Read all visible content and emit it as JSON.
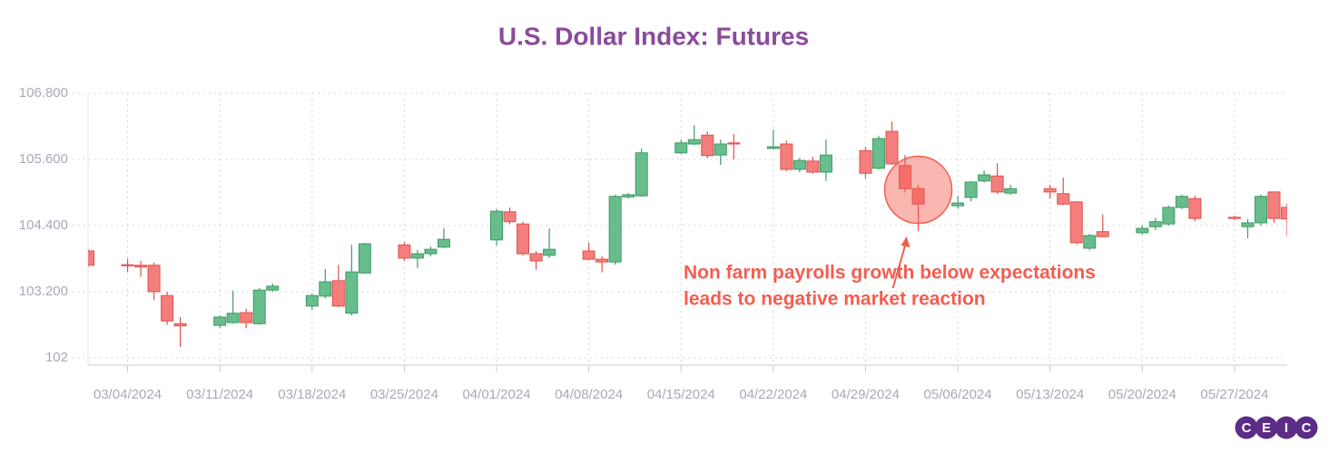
{
  "chart_data": {
    "type": "candlestick",
    "title": "U.S. Dollar Index: Futures",
    "x": [
      "2024-03-01",
      "2024-03-04",
      "2024-03-05",
      "2024-03-06",
      "2024-03-07",
      "2024-03-08",
      "2024-03-11",
      "2024-03-12",
      "2024-03-13",
      "2024-03-14",
      "2024-03-15",
      "2024-03-18",
      "2024-03-19",
      "2024-03-20",
      "2024-03-21",
      "2024-03-22",
      "2024-03-25",
      "2024-03-26",
      "2024-03-27",
      "2024-03-28",
      "2024-04-01",
      "2024-04-02",
      "2024-04-03",
      "2024-04-04",
      "2024-04-05",
      "2024-04-08",
      "2024-04-09",
      "2024-04-10",
      "2024-04-11",
      "2024-04-12",
      "2024-04-15",
      "2024-04-16",
      "2024-04-17",
      "2024-04-18",
      "2024-04-19",
      "2024-04-22",
      "2024-04-23",
      "2024-04-24",
      "2024-04-25",
      "2024-04-26",
      "2024-04-29",
      "2024-04-30",
      "2024-05-01",
      "2024-05-02",
      "2024-05-03",
      "2024-05-06",
      "2024-05-07",
      "2024-05-08",
      "2024-05-09",
      "2024-05-10",
      "2024-05-13",
      "2024-05-14",
      "2024-05-15",
      "2024-05-16",
      "2024-05-17",
      "2024-05-20",
      "2024-05-21",
      "2024-05-22",
      "2024-05-23",
      "2024-05-24",
      "2024-05-27",
      "2024-05-28",
      "2024-05-29",
      "2024-05-30",
      "2024-05-31"
    ],
    "open": [
      103.94,
      103.69,
      103.68,
      103.68,
      103.13,
      102.62,
      102.59,
      102.64,
      102.82,
      102.62,
      103.23,
      102.94,
      103.12,
      103.4,
      102.81,
      103.54,
      104.05,
      103.81,
      103.89,
      104.01,
      104.14,
      104.65,
      104.43,
      103.89,
      103.86,
      103.94,
      103.79,
      103.74,
      104.92,
      104.94,
      105.72,
      105.88,
      106.04,
      105.68,
      105.9,
      105.8,
      105.88,
      105.42,
      105.57,
      105.37,
      105.76,
      105.44,
      106.11,
      105.49,
      105.07,
      104.76,
      104.91,
      105.21,
      105.3,
      104.99,
      105.07,
      104.98,
      104.83,
      103.99,
      104.29,
      104.27,
      104.38,
      104.43,
      104.73,
      104.89,
      104.55,
      104.38,
      104.45,
      105.01,
      104.73
    ],
    "high": [
      103.97,
      103.8,
      103.76,
      103.73,
      103.2,
      102.74,
      102.77,
      103.22,
      102.89,
      103.27,
      103.35,
      103.17,
      103.61,
      103.69,
      104.05,
      104.09,
      104.1,
      103.96,
      104.02,
      104.35,
      104.7,
      104.73,
      104.47,
      103.94,
      104.35,
      104.09,
      103.84,
      104.96,
      104.99,
      105.8,
      105.96,
      106.22,
      106.11,
      105.96,
      106.06,
      106.14,
      105.94,
      105.63,
      105.65,
      105.96,
      105.83,
      106.03,
      106.29,
      105.68,
      105.14,
      104.94,
      105.21,
      105.4,
      105.53,
      105.14,
      105.14,
      105.27,
      104.84,
      104.25,
      104.6,
      104.4,
      104.54,
      104.76,
      104.96,
      104.94,
      104.58,
      104.52,
      104.96,
      105.02,
      104.8
    ],
    "low": [
      103.66,
      103.56,
      103.47,
      103.05,
      102.6,
      102.2,
      102.54,
      102.62,
      102.54,
      102.6,
      103.2,
      102.87,
      103.08,
      102.92,
      102.77,
      103.53,
      103.76,
      103.63,
      103.84,
      103.99,
      104.04,
      104.43,
      103.86,
      103.6,
      103.81,
      103.77,
      103.55,
      103.69,
      104.89,
      104.92,
      105.7,
      105.86,
      105.62,
      105.5,
      105.6,
      105.78,
      105.39,
      105.37,
      105.34,
      105.21,
      105.25,
      105.42,
      105.5,
      105.0,
      104.3,
      104.71,
      104.84,
      105.18,
      104.98,
      104.96,
      104.89,
      104.77,
      104.06,
      103.96,
      104.19,
      104.24,
      104.32,
      104.4,
      104.7,
      104.48,
      104.5,
      104.17,
      104.4,
      104.45,
      104.22
    ],
    "close": [
      103.68,
      103.67,
      103.65,
      103.2,
      102.67,
      102.58,
      102.74,
      102.81,
      102.64,
      103.23,
      103.3,
      103.13,
      103.38,
      102.94,
      103.56,
      104.07,
      103.81,
      103.89,
      103.97,
      104.15,
      104.66,
      104.47,
      103.89,
      103.76,
      103.97,
      103.79,
      103.74,
      104.93,
      104.96,
      105.72,
      105.9,
      105.96,
      105.67,
      105.88,
      105.88,
      105.83,
      105.42,
      105.58,
      105.37,
      105.68,
      105.35,
      105.98,
      105.52,
      105.07,
      104.79,
      104.81,
      105.19,
      105.32,
      105.01,
      105.07,
      105.01,
      104.79,
      104.09,
      104.22,
      104.2,
      104.35,
      104.47,
      104.73,
      104.93,
      104.53,
      104.53,
      104.45,
      104.93,
      104.53,
      104.52
    ],
    "up_color": "#67bd8c",
    "down_color": "#f47e7b",
    "xlim": [
      "2024-03-01",
      "2024-05-31"
    ],
    "xticks": [
      {
        "value": "2024-03-04",
        "label": "03/04/2024"
      },
      {
        "value": "2024-03-11",
        "label": "03/11/2024"
      },
      {
        "value": "2024-03-18",
        "label": "03/18/2024"
      },
      {
        "value": "2024-03-25",
        "label": "03/25/2024"
      },
      {
        "value": "2024-04-01",
        "label": "04/01/2024"
      },
      {
        "value": "2024-04-08",
        "label": "04/08/2024"
      },
      {
        "value": "2024-04-15",
        "label": "04/15/2024"
      },
      {
        "value": "2024-04-22",
        "label": "04/22/2024"
      },
      {
        "value": "2024-04-29",
        "label": "04/29/2024"
      },
      {
        "value": "2024-05-06",
        "label": "05/06/2024"
      },
      {
        "value": "2024-05-13",
        "label": "05/13/2024"
      },
      {
        "value": "2024-05-20",
        "label": "05/20/2024"
      },
      {
        "value": "2024-05-27",
        "label": "05/27/2024"
      }
    ],
    "ylim": [
      102,
      106.8
    ],
    "yticks": [
      102,
      {
        "value": 103.2,
        "label": "103.200"
      },
      {
        "value": 104.4,
        "label": "104.400"
      },
      {
        "value": 105.6,
        "label": "105.600"
      },
      {
        "value": 106.8,
        "label": "106.800"
      }
    ],
    "grid": true,
    "annotation": {
      "x": "2024-05-03",
      "color": "#f45d4f",
      "text": [
        "Non farm payrolls growth below expectations",
        "leads to negative market reaction"
      ]
    }
  },
  "logo": [
    "C",
    "E",
    "I",
    "C"
  ]
}
